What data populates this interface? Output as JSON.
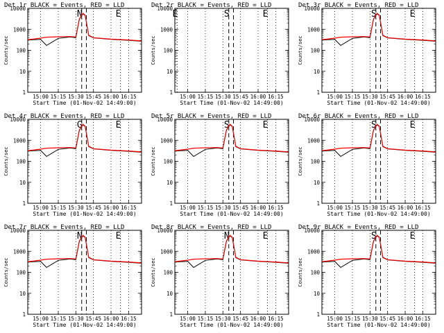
{
  "common": {
    "ylabel": "Counts/sec",
    "xlabel": "Start Time (01-Nov-02 14:49:00)",
    "x_tick_labels": [
      "15:00",
      "15:15",
      "15:30",
      "15:45",
      "16:00",
      "16:15"
    ],
    "y_tick_labels": [
      "1",
      "10",
      "100",
      "1000",
      "10000"
    ],
    "black_color": "#000000",
    "red_color": "#ff0000"
  },
  "chart_data": [
    {
      "type": "line",
      "title": "Det 1r BLACK = Events, RED = LLD",
      "label": "N",
      "mode": "normal",
      "dips": true,
      "black_scale": 1.0,
      "yscale": "log",
      "ylim": [
        1,
        10000
      ],
      "xlim": [
        "14:49",
        "16:26"
      ],
      "grid": "vertical dotted",
      "markers": [
        {
          "label": "N",
          "x": "15:35",
          "style": "dashed"
        },
        {
          "label": "",
          "x": "15:39",
          "style": "dashed"
        },
        {
          "label": "E",
          "x": "16:08",
          "style": "dotted"
        }
      ],
      "series": [
        {
          "name": "BLACK = Events",
          "x": [
            "14:49",
            "15:00",
            "15:05",
            "15:15",
            "15:25",
            "15:30",
            "15:33",
            "15:36",
            "15:38",
            "15:41",
            "15:45",
            "16:00",
            "16:15",
            "16:26"
          ],
          "values": [
            310,
            330,
            170,
            370,
            430,
            400,
            3000,
            5500,
            4500,
            500,
            390,
            330,
            300,
            270
          ]
        },
        {
          "name": "RED = LLD",
          "x": [
            "14:49",
            "15:00",
            "15:05",
            "15:15",
            "15:25",
            "15:30",
            "15:33",
            "15:36",
            "15:38",
            "15:41",
            "15:45",
            "16:00",
            "16:15",
            "16:26"
          ],
          "values": [
            320,
            380,
            420,
            440,
            450,
            430,
            3100,
            5800,
            4700,
            520,
            400,
            340,
            310,
            280
          ]
        }
      ]
    },
    {
      "type": "line",
      "title": "Det 2r BLACK = Events, RED = LLD",
      "label": "S",
      "mode": "empty",
      "dips": false,
      "black_scale": 1.0,
      "yscale": "log",
      "ylim": [
        1,
        10000
      ],
      "xlim": [
        "14:49",
        "16:26"
      ],
      "grid": "vertical dotted",
      "markers": [
        {
          "label": "E",
          "x": "14:51",
          "style": "dotted"
        },
        {
          "label": "S",
          "x": "15:35",
          "style": "dashed"
        },
        {
          "label": "",
          "x": "15:39",
          "style": "dashed"
        },
        {
          "label": "E",
          "x": "16:08",
          "style": "dotted"
        }
      ],
      "series": []
    },
    {
      "type": "line",
      "title": "Det 3r BLACK = Events, RED = LLD",
      "label": "S",
      "mode": "normal",
      "dips": true,
      "black_scale": 1.0,
      "yscale": "log",
      "ylim": [
        1,
        10000
      ],
      "xlim": [
        "14:49",
        "16:26"
      ],
      "grid": "vertical dotted",
      "markers": [
        {
          "label": "S",
          "x": "15:35",
          "style": "dashed"
        },
        {
          "label": "",
          "x": "15:39",
          "style": "dashed"
        },
        {
          "label": "E",
          "x": "16:08",
          "style": "dotted"
        }
      ],
      "series": [
        {
          "name": "BLACK = Events",
          "x": [
            "14:49",
            "15:00",
            "15:05",
            "15:15",
            "15:25",
            "15:30",
            "15:33",
            "15:36",
            "15:38",
            "15:41",
            "15:45",
            "16:00",
            "16:15",
            "16:26"
          ],
          "values": [
            310,
            330,
            170,
            370,
            430,
            400,
            3000,
            5500,
            4500,
            500,
            390,
            330,
            300,
            270
          ]
        },
        {
          "name": "RED = LLD",
          "x": [
            "14:49",
            "15:00",
            "15:05",
            "15:15",
            "15:25",
            "15:30",
            "15:33",
            "15:36",
            "15:38",
            "15:41",
            "15:45",
            "16:00",
            "16:15",
            "16:26"
          ],
          "values": [
            320,
            380,
            420,
            440,
            450,
            430,
            3100,
            5800,
            4700,
            520,
            400,
            340,
            310,
            280
          ]
        }
      ]
    },
    {
      "type": "line",
      "title": "Det 4r BLACK = Events, RED = LLD",
      "label": "G",
      "mode": "normal",
      "dips": true,
      "black_scale": 1.0,
      "yscale": "log",
      "ylim": [
        1,
        10000
      ],
      "xlim": [
        "14:49",
        "16:26"
      ],
      "grid": "vertical dotted",
      "markers": [
        {
          "label": "G",
          "x": "15:35",
          "style": "dashed"
        },
        {
          "label": "",
          "x": "15:39",
          "style": "dashed"
        },
        {
          "label": "E",
          "x": "16:08",
          "style": "dotted"
        }
      ],
      "series": [
        {
          "name": "BLACK = Events",
          "x": [
            "14:49",
            "15:00",
            "15:05",
            "15:15",
            "15:25",
            "15:30",
            "15:33",
            "15:36",
            "15:38",
            "15:41",
            "15:45",
            "16:00",
            "16:15",
            "16:26"
          ],
          "values": [
            310,
            330,
            170,
            370,
            430,
            400,
            3000,
            5500,
            4500,
            500,
            390,
            330,
            300,
            270
          ]
        },
        {
          "name": "RED = LLD",
          "x": [
            "14:49",
            "15:00",
            "15:05",
            "15:15",
            "15:25",
            "15:30",
            "15:33",
            "15:36",
            "15:38",
            "15:41",
            "15:45",
            "16:00",
            "16:15",
            "16:26"
          ],
          "values": [
            320,
            380,
            420,
            440,
            450,
            430,
            3100,
            5800,
            4700,
            520,
            400,
            340,
            310,
            280
          ]
        }
      ]
    },
    {
      "type": "line",
      "title": "Det 5r BLACK = Events, RED = LLD",
      "label": "S",
      "mode": "normal",
      "dips": true,
      "black_scale": 1.0,
      "yscale": "log",
      "ylim": [
        1,
        10000
      ],
      "xlim": [
        "14:49",
        "16:26"
      ],
      "grid": "vertical dotted",
      "markers": [
        {
          "label": "S",
          "x": "15:35",
          "style": "dashed"
        },
        {
          "label": "",
          "x": "15:39",
          "style": "dashed"
        },
        {
          "label": "E",
          "x": "16:08",
          "style": "dotted"
        }
      ],
      "series": [
        {
          "name": "BLACK = Events",
          "x": [
            "14:49",
            "15:00",
            "15:05",
            "15:15",
            "15:25",
            "15:30",
            "15:33",
            "15:36",
            "15:38",
            "15:41",
            "15:45",
            "16:00",
            "16:15",
            "16:26"
          ],
          "values": [
            310,
            330,
            170,
            370,
            430,
            400,
            3000,
            5500,
            4500,
            500,
            390,
            330,
            300,
            270
          ]
        },
        {
          "name": "RED = LLD",
          "x": [
            "14:49",
            "15:00",
            "15:05",
            "15:15",
            "15:25",
            "15:30",
            "15:33",
            "15:36",
            "15:38",
            "15:41",
            "15:45",
            "16:00",
            "16:15",
            "16:26"
          ],
          "values": [
            320,
            380,
            420,
            440,
            450,
            430,
            3100,
            5800,
            4700,
            520,
            400,
            340,
            310,
            280
          ]
        }
      ]
    },
    {
      "type": "line",
      "title": "Det 6r BLACK = Events, RED = LLD",
      "label": "S",
      "mode": "normal",
      "dips": true,
      "black_scale": 1.0,
      "yscale": "log",
      "ylim": [
        1,
        10000
      ],
      "xlim": [
        "14:49",
        "16:26"
      ],
      "grid": "vertical dotted",
      "markers": [
        {
          "label": "S",
          "x": "15:35",
          "style": "dashed"
        },
        {
          "label": "",
          "x": "15:39",
          "style": "dashed"
        },
        {
          "label": "E",
          "x": "16:08",
          "style": "dotted"
        }
      ],
      "series": [
        {
          "name": "BLACK = Events",
          "x": [
            "14:49",
            "15:00",
            "15:05",
            "15:15",
            "15:25",
            "15:30",
            "15:33",
            "15:36",
            "15:38",
            "15:41",
            "15:45",
            "16:00",
            "16:15",
            "16:26"
          ],
          "values": [
            310,
            330,
            170,
            370,
            430,
            400,
            3000,
            5500,
            4500,
            500,
            390,
            330,
            300,
            270
          ]
        },
        {
          "name": "RED = LLD",
          "x": [
            "14:49",
            "15:00",
            "15:05",
            "15:15",
            "15:25",
            "15:30",
            "15:33",
            "15:36",
            "15:38",
            "15:41",
            "15:45",
            "16:00",
            "16:15",
            "16:26"
          ],
          "values": [
            320,
            380,
            420,
            440,
            450,
            430,
            3100,
            5800,
            4700,
            520,
            400,
            340,
            310,
            280
          ]
        }
      ]
    },
    {
      "type": "line",
      "title": "Det 7r BLACK = Events, RED = LLD",
      "label": "N",
      "mode": "normal",
      "dips": true,
      "black_scale": 1.0,
      "yscale": "log",
      "ylim": [
        1,
        10000
      ],
      "xlim": [
        "14:49",
        "16:26"
      ],
      "grid": "vertical dotted",
      "markers": [
        {
          "label": "N",
          "x": "15:35",
          "style": "dashed"
        },
        {
          "label": "",
          "x": "15:39",
          "style": "dashed"
        },
        {
          "label": "E",
          "x": "16:08",
          "style": "dotted"
        }
      ],
      "series": [
        {
          "name": "BLACK = Events",
          "x": [
            "14:49",
            "15:00",
            "15:05",
            "15:15",
            "15:25",
            "15:30",
            "15:33",
            "15:36",
            "15:38",
            "15:41",
            "15:45",
            "16:00",
            "16:15",
            "16:26"
          ],
          "values": [
            310,
            330,
            170,
            370,
            430,
            400,
            3000,
            5500,
            4500,
            500,
            390,
            330,
            300,
            270
          ]
        },
        {
          "name": "RED = LLD",
          "x": [
            "14:49",
            "15:00",
            "15:05",
            "15:15",
            "15:25",
            "15:30",
            "15:33",
            "15:36",
            "15:38",
            "15:41",
            "15:45",
            "16:00",
            "16:15",
            "16:26"
          ],
          "values": [
            320,
            380,
            420,
            440,
            450,
            430,
            3100,
            5800,
            4700,
            520,
            400,
            340,
            310,
            280
          ]
        }
      ]
    },
    {
      "type": "line",
      "title": "Det 8r BLACK = Events, RED = LLD",
      "label": "N",
      "mode": "normal",
      "dips": true,
      "black_scale": 1.0,
      "yscale": "log",
      "ylim": [
        1,
        10000
      ],
      "xlim": [
        "14:49",
        "16:26"
      ],
      "grid": "vertical dotted",
      "markers": [
        {
          "label": "N",
          "x": "15:35",
          "style": "dashed"
        },
        {
          "label": "",
          "x": "15:39",
          "style": "dashed"
        },
        {
          "label": "E",
          "x": "16:08",
          "style": "dotted"
        }
      ],
      "series": [
        {
          "name": "BLACK = Events",
          "x": [
            "14:49",
            "15:00",
            "15:05",
            "15:15",
            "15:25",
            "15:30",
            "15:33",
            "15:36",
            "15:38",
            "15:41",
            "15:45",
            "16:00",
            "16:15",
            "16:26"
          ],
          "values": [
            310,
            330,
            170,
            370,
            430,
            400,
            3000,
            5500,
            4500,
            500,
            390,
            330,
            300,
            270
          ]
        },
        {
          "name": "RED = LLD",
          "x": [
            "14:49",
            "15:00",
            "15:05",
            "15:15",
            "15:25",
            "15:30",
            "15:33",
            "15:36",
            "15:38",
            "15:41",
            "15:45",
            "16:00",
            "16:15",
            "16:26"
          ],
          "values": [
            320,
            380,
            420,
            440,
            450,
            430,
            3100,
            5800,
            4700,
            520,
            400,
            340,
            310,
            280
          ]
        }
      ]
    },
    {
      "type": "line",
      "title": "Det 9r BLACK = Events, RED = LLD",
      "label": "S",
      "mode": "normal",
      "dips": true,
      "black_scale": 1.0,
      "yscale": "log",
      "ylim": [
        1,
        10000
      ],
      "xlim": [
        "14:49",
        "16:26"
      ],
      "grid": "vertical dotted",
      "markers": [
        {
          "label": "S",
          "x": "15:35",
          "style": "dashed"
        },
        {
          "label": "",
          "x": "15:39",
          "style": "dashed"
        },
        {
          "label": "E",
          "x": "16:08",
          "style": "dotted"
        }
      ],
      "series": [
        {
          "name": "BLACK = Events",
          "x": [
            "14:49",
            "15:00",
            "15:05",
            "15:15",
            "15:25",
            "15:30",
            "15:33",
            "15:36",
            "15:38",
            "15:41",
            "15:45",
            "16:00",
            "16:15",
            "16:26"
          ],
          "values": [
            310,
            330,
            170,
            370,
            430,
            400,
            3000,
            5500,
            4500,
            500,
            390,
            330,
            300,
            270
          ]
        },
        {
          "name": "RED = LLD",
          "x": [
            "14:49",
            "15:00",
            "15:05",
            "15:15",
            "15:25",
            "15:30",
            "15:33",
            "15:36",
            "15:38",
            "15:41",
            "15:45",
            "16:00",
            "16:15",
            "16:26"
          ],
          "values": [
            320,
            380,
            420,
            440,
            450,
            430,
            3100,
            5800,
            4700,
            520,
            400,
            340,
            310,
            280
          ]
        }
      ]
    }
  ]
}
